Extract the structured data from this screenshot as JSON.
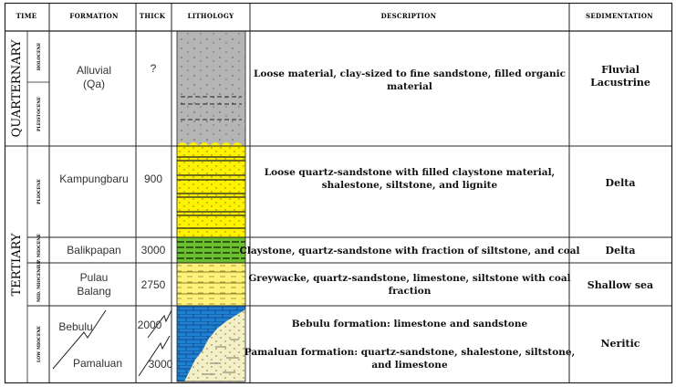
{
  "headers": {
    "time": "TIME",
    "formation": "FORMATION",
    "thick": "THICK",
    "lithology": "LITHOLOGY",
    "description": "DESCRIPTION",
    "sedimentation": "SEDIMENTATION"
  },
  "eras": {
    "quaternary": "QUARTERNARY",
    "tertiary": "TERTIARY"
  },
  "epochs": {
    "holocene": "HOLOCENE",
    "pleistocene": "PLEISTOCENE",
    "pliocene": "PLIOCENE",
    "up_miocene": "UP. MIOCENE",
    "mid_miocene": "MID. MIOCENE",
    "low_miocene": "LOW MIOCENE"
  },
  "rows": [
    {
      "formation": [
        "Alluvial",
        "(Qa)"
      ],
      "thick": "?",
      "description": [
        "Loose material, clay-sized to fine sandstone, filled organic",
        "material"
      ],
      "sedimentation": [
        "Fluvial",
        "Lacustrine"
      ]
    },
    {
      "formation": [
        "Kampungbaru"
      ],
      "thick": "900",
      "description": [
        "Loose quartz-sandstone with filled claystone material,",
        "shalestone, siltstone, and lignite"
      ],
      "sedimentation": [
        "Delta"
      ]
    },
    {
      "formation": [
        "Balikpapan"
      ],
      "thick": "3000",
      "description": [
        "Claystone, quartz-sandstone with fraction of siltstone, and coal"
      ],
      "sedimentation": [
        "Delta"
      ]
    },
    {
      "formation": [
        "Pulau",
        "Balang"
      ],
      "thick": "2750",
      "description": [
        "Greywacke, quartz-sandstone, limestone, siltstone with coal",
        "fraction"
      ],
      "sedimentation": [
        "Shallow sea"
      ]
    },
    {
      "formation": [
        "Bebulu",
        "Pamaluan"
      ],
      "thick": [
        "2000",
        "3000"
      ],
      "description": [
        "Bebulu formation: limestone and sandstone",
        "Pamaluan formation: quartz-sandstone, shalestone, siltstone,",
        "and limestone"
      ],
      "sedimentation": [
        "Neritic"
      ]
    }
  ],
  "colors": {
    "alluvial": "#b5b5b5",
    "kampungbaru": "#fff200",
    "balikpapan": "#6cbf2e",
    "pulau_balang": "#fff27a",
    "bebulu": "#1f7fd1",
    "pamaluan": "#f3efc8",
    "border": "#222222"
  }
}
